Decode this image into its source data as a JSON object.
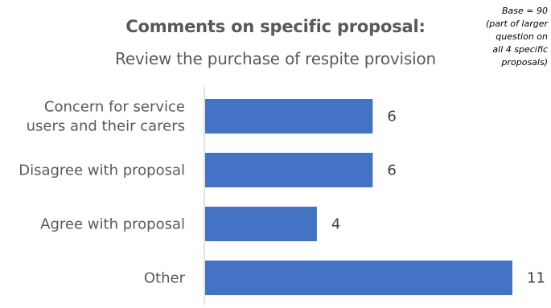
{
  "chart_data": {
    "type": "bar",
    "orientation": "horizontal",
    "title": "Comments on specific proposal:",
    "subtitle": "Review the purchase of respite provision",
    "note": [
      "Base = 90",
      "(part of larger",
      "question on",
      "all 4 specific",
      "proposals)"
    ],
    "categories": [
      [
        "Concern for service",
        "users and their carers"
      ],
      [
        "Disagree with proposal"
      ],
      [
        "Agree with proposal"
      ],
      [
        "Other"
      ]
    ],
    "values": [
      6,
      6,
      4,
      11
    ],
    "value_labels": [
      "6",
      "6",
      "4",
      "11"
    ],
    "xlim": [
      0,
      11
    ],
    "bar_color": "#4472C4",
    "axis_color": "#D9D9D9",
    "grid": false,
    "legend": false
  }
}
